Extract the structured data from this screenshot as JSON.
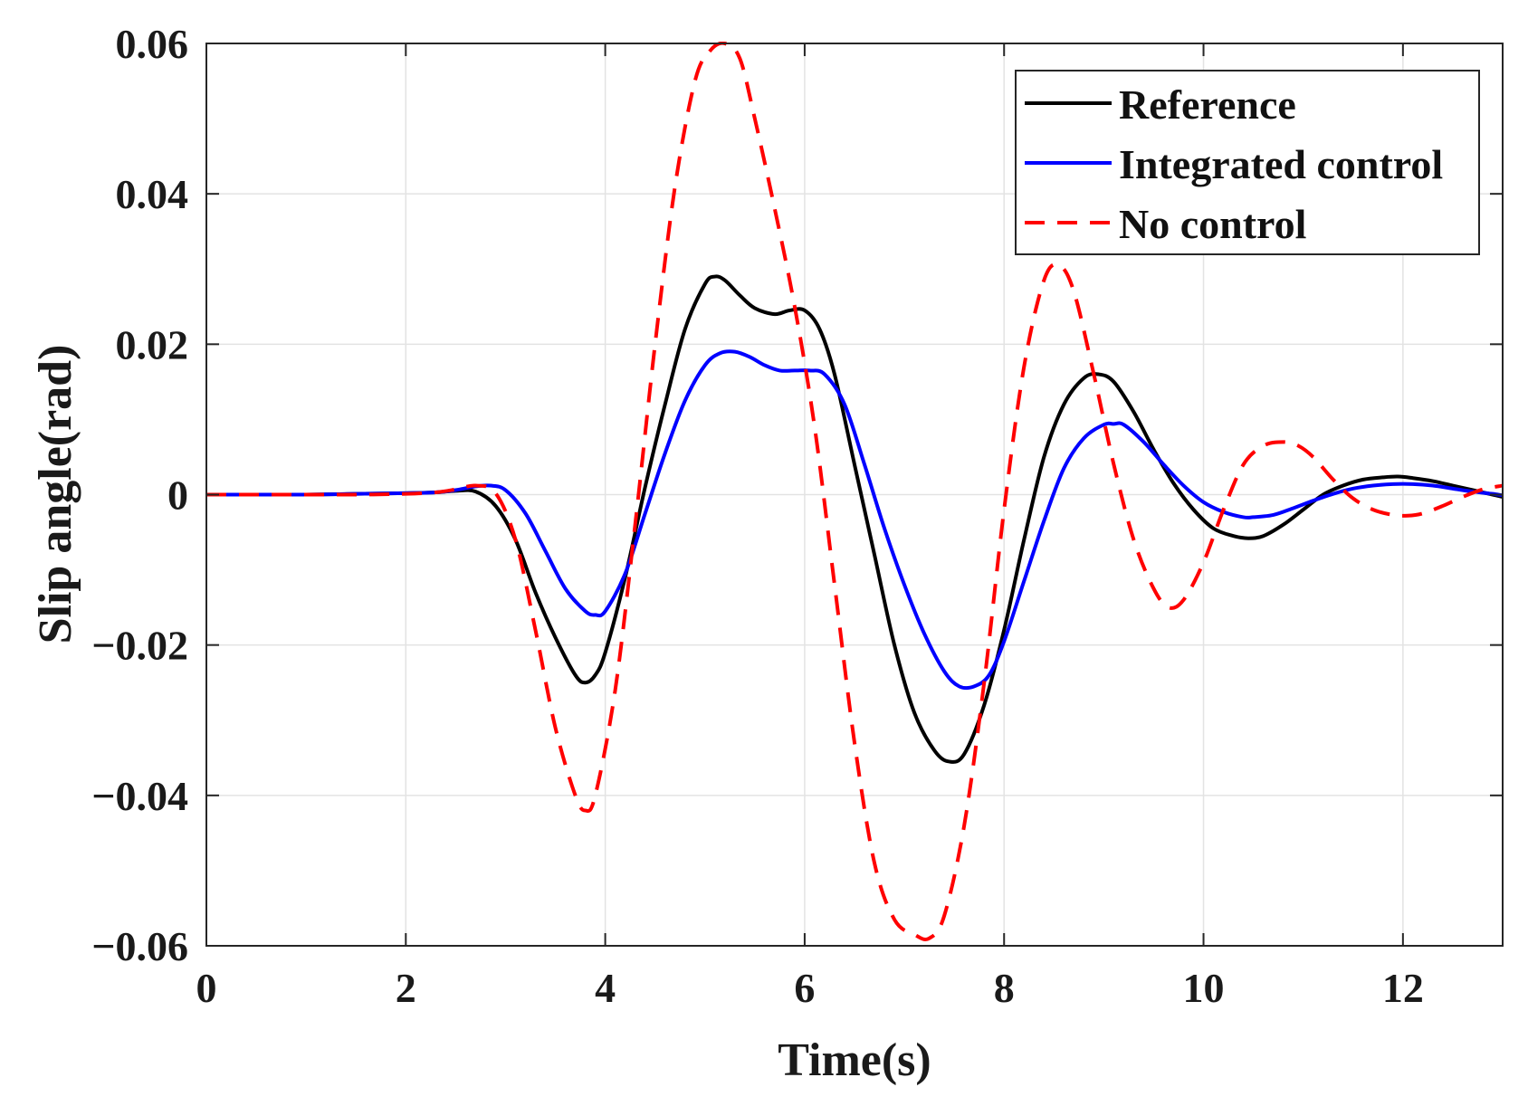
{
  "chart_data": {
    "type": "line",
    "title": "",
    "xlabel": "Time(s)",
    "ylabel": "Slip angle(rad)",
    "xlim": [
      0,
      13
    ],
    "ylim": [
      -0.06,
      0.06
    ],
    "grid": true,
    "legend_position": "top-right",
    "x_ticks": [
      0,
      2,
      4,
      6,
      8,
      10,
      12
    ],
    "x_tick_labels": [
      "0",
      "2",
      "4",
      "6",
      "8",
      "10",
      "12"
    ],
    "y_ticks": [
      -0.06,
      -0.04,
      -0.02,
      0,
      0.02,
      0.04,
      0.06
    ],
    "y_tick_labels": [
      "−0.06",
      "−0.04",
      "−0.02",
      "0",
      "0.02",
      "0.04",
      "0.06"
    ],
    "series": [
      {
        "name": "Reference",
        "color": "#000000",
        "style": "solid",
        "x": [
          0,
          0.5,
          1,
          1.5,
          2,
          2.3,
          2.5,
          2.7,
          2.9,
          3.1,
          3.3,
          3.5,
          3.7,
          3.8,
          3.9,
          4.0,
          4.2,
          4.4,
          4.6,
          4.8,
          5.0,
          5.1,
          5.2,
          5.35,
          5.5,
          5.7,
          5.85,
          6.0,
          6.15,
          6.3,
          6.5,
          6.7,
          6.9,
          7.1,
          7.3,
          7.45,
          7.6,
          7.8,
          8.0,
          8.2,
          8.4,
          8.6,
          8.8,
          8.95,
          9.1,
          9.3,
          9.5,
          9.7,
          9.9,
          10.1,
          10.3,
          10.45,
          10.6,
          10.8,
          11.0,
          11.2,
          11.4,
          11.6,
          11.8,
          11.95,
          12.1,
          12.3,
          12.5,
          12.7,
          12.9,
          13.0
        ],
        "y": [
          0,
          0,
          0,
          0.0001,
          0.0002,
          0.0003,
          0.0005,
          0.0004,
          -0.0015,
          -0.006,
          -0.013,
          -0.019,
          -0.024,
          -0.025,
          -0.024,
          -0.021,
          -0.011,
          0.001,
          0.012,
          0.022,
          0.028,
          0.029,
          0.0285,
          0.0265,
          0.0248,
          0.024,
          0.0245,
          0.0245,
          0.022,
          0.016,
          0.004,
          -0.008,
          -0.02,
          -0.029,
          -0.034,
          -0.0355,
          -0.0345,
          -0.028,
          -0.018,
          -0.006,
          0.005,
          0.012,
          0.0155,
          0.016,
          0.015,
          0.011,
          0.006,
          0.0015,
          -0.002,
          -0.0045,
          -0.0055,
          -0.0058,
          -0.0055,
          -0.004,
          -0.002,
          0,
          0.0012,
          0.002,
          0.0023,
          0.0024,
          0.0022,
          0.0018,
          0.0012,
          0.0006,
          0,
          -0.0003
        ]
      },
      {
        "name": "Integrated control",
        "color": "#0000ff",
        "style": "solid",
        "x": [
          0,
          0.5,
          1,
          1.5,
          2,
          2.3,
          2.5,
          2.7,
          2.85,
          3.0,
          3.2,
          3.4,
          3.6,
          3.8,
          3.9,
          4.0,
          4.2,
          4.4,
          4.6,
          4.8,
          5.0,
          5.15,
          5.3,
          5.45,
          5.6,
          5.75,
          5.9,
          6.05,
          6.2,
          6.4,
          6.6,
          6.8,
          7.0,
          7.2,
          7.4,
          7.55,
          7.7,
          7.85,
          8.0,
          8.2,
          8.4,
          8.6,
          8.8,
          9.0,
          9.1,
          9.2,
          9.4,
          9.6,
          9.8,
          10.0,
          10.2,
          10.4,
          10.5,
          10.7,
          10.9,
          11.1,
          11.3,
          11.5,
          11.7,
          11.9,
          12.1,
          12.3,
          12.5,
          12.7,
          12.9,
          13.0
        ],
        "y": [
          0,
          0,
          0,
          0.0001,
          0.0002,
          0.0003,
          0.0006,
          0.0011,
          0.0012,
          0.0006,
          -0.0025,
          -0.0075,
          -0.0125,
          -0.0155,
          -0.016,
          -0.0155,
          -0.0105,
          -0.0025,
          0.0055,
          0.0125,
          0.0172,
          0.0188,
          0.019,
          0.0183,
          0.0172,
          0.0165,
          0.0165,
          0.0165,
          0.016,
          0.012,
          0.004,
          -0.0045,
          -0.012,
          -0.0185,
          -0.0235,
          -0.0255,
          -0.0255,
          -0.024,
          -0.0195,
          -0.0115,
          -0.0035,
          0.0035,
          0.0075,
          0.0093,
          0.0094,
          0.0093,
          0.007,
          0.004,
          0.0012,
          -0.001,
          -0.0023,
          -0.003,
          -0.003,
          -0.0027,
          -0.0018,
          -0.0008,
          0.0001,
          0.0008,
          0.0012,
          0.0014,
          0.0014,
          0.0012,
          0.0008,
          0.0004,
          0.0001,
          -0.0001
        ]
      },
      {
        "name": "No control",
        "color": "#ff0000",
        "style": "dashed",
        "x": [
          0,
          0.5,
          1,
          1.5,
          2,
          2.3,
          2.5,
          2.7,
          2.9,
          3.1,
          3.3,
          3.5,
          3.7,
          3.8,
          3.9,
          4.1,
          4.3,
          4.5,
          4.7,
          4.9,
          5.05,
          5.2,
          5.35,
          5.5,
          5.7,
          5.9,
          6.1,
          6.3,
          6.5,
          6.7,
          6.9,
          7.1,
          7.25,
          7.4,
          7.6,
          7.8,
          8.0,
          8.2,
          8.4,
          8.55,
          8.7,
          8.9,
          9.1,
          9.3,
          9.5,
          9.65,
          9.8,
          10.0,
          10.2,
          10.4,
          10.6,
          10.8,
          10.95,
          11.1,
          11.3,
          11.5,
          11.7,
          11.9,
          12.05,
          12.2,
          12.4,
          12.6,
          12.8,
          13.0
        ],
        "y": [
          0,
          0,
          0,
          0,
          0.0001,
          0.0003,
          0.0007,
          0.0012,
          0.0002,
          -0.006,
          -0.018,
          -0.031,
          -0.04,
          -0.042,
          -0.04,
          -0.026,
          -0.004,
          0.02,
          0.041,
          0.055,
          0.059,
          0.06,
          0.058,
          0.05,
          0.038,
          0.025,
          0.009,
          -0.012,
          -0.033,
          -0.049,
          -0.0565,
          -0.0585,
          -0.059,
          -0.056,
          -0.044,
          -0.025,
          -0.002,
          0.017,
          0.0285,
          0.0305,
          0.027,
          0.016,
          0.004,
          -0.006,
          -0.0125,
          -0.015,
          -0.014,
          -0.009,
          -0.002,
          0.004,
          0.0065,
          0.007,
          0.0065,
          0.005,
          0.002,
          -0.0005,
          -0.002,
          -0.0027,
          -0.0028,
          -0.0025,
          -0.0015,
          -0.0003,
          0.0007,
          0.0012
        ]
      }
    ]
  }
}
